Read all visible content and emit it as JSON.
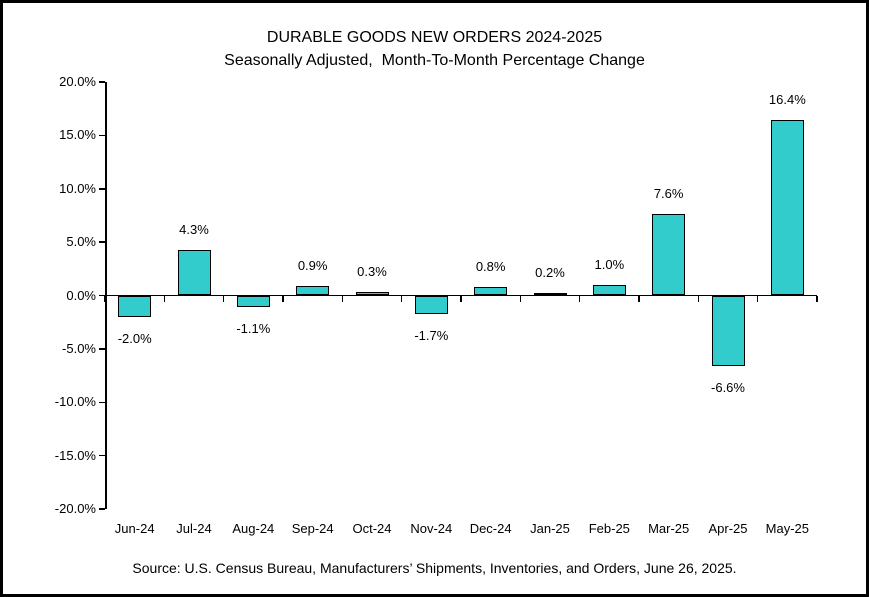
{
  "chart_data": {
    "type": "bar",
    "title": "DURABLE GOODS NEW ORDERS 2024-2025",
    "subtitle": "Seasonally Adjusted,  Month-To-Month Percentage Change",
    "categories": [
      "Jun-24",
      "Jul-24",
      "Aug-24",
      "Sep-24",
      "Oct-24",
      "Nov-24",
      "Dec-24",
      "Jan-25",
      "Feb-25",
      "Mar-25",
      "Apr-25",
      "May-25"
    ],
    "values": [
      -2.0,
      4.3,
      -1.1,
      0.9,
      0.3,
      -1.7,
      0.8,
      0.2,
      1.0,
      7.6,
      -6.6,
      16.4
    ],
    "labels": [
      "-2.0%",
      "4.3%",
      "-1.1%",
      "0.9%",
      "0.3%",
      "-1.7%",
      "0.8%",
      "0.2%",
      "1.0%",
      "7.6%",
      "-6.6%",
      "16.4%"
    ],
    "xlabel": "",
    "ylabel": "",
    "ylim": [
      -20,
      20
    ],
    "ytick_step": 5,
    "ytick_labels": [
      "20.0%",
      "15.0%",
      "10.0%",
      "5.0%",
      "0.0%",
      "-5.0%",
      "-10.0%",
      "-15.0%",
      "-20.0%"
    ],
    "grid": false,
    "legend_position": "none",
    "bar_color": "#33CCCC",
    "bar_border_color": "#000000",
    "axis_color": "#000000"
  },
  "source": {
    "text": "Source: U.S. Census Bureau, Manufacturers’ Shipments, Inventories, and Orders, June 26, 2025."
  }
}
